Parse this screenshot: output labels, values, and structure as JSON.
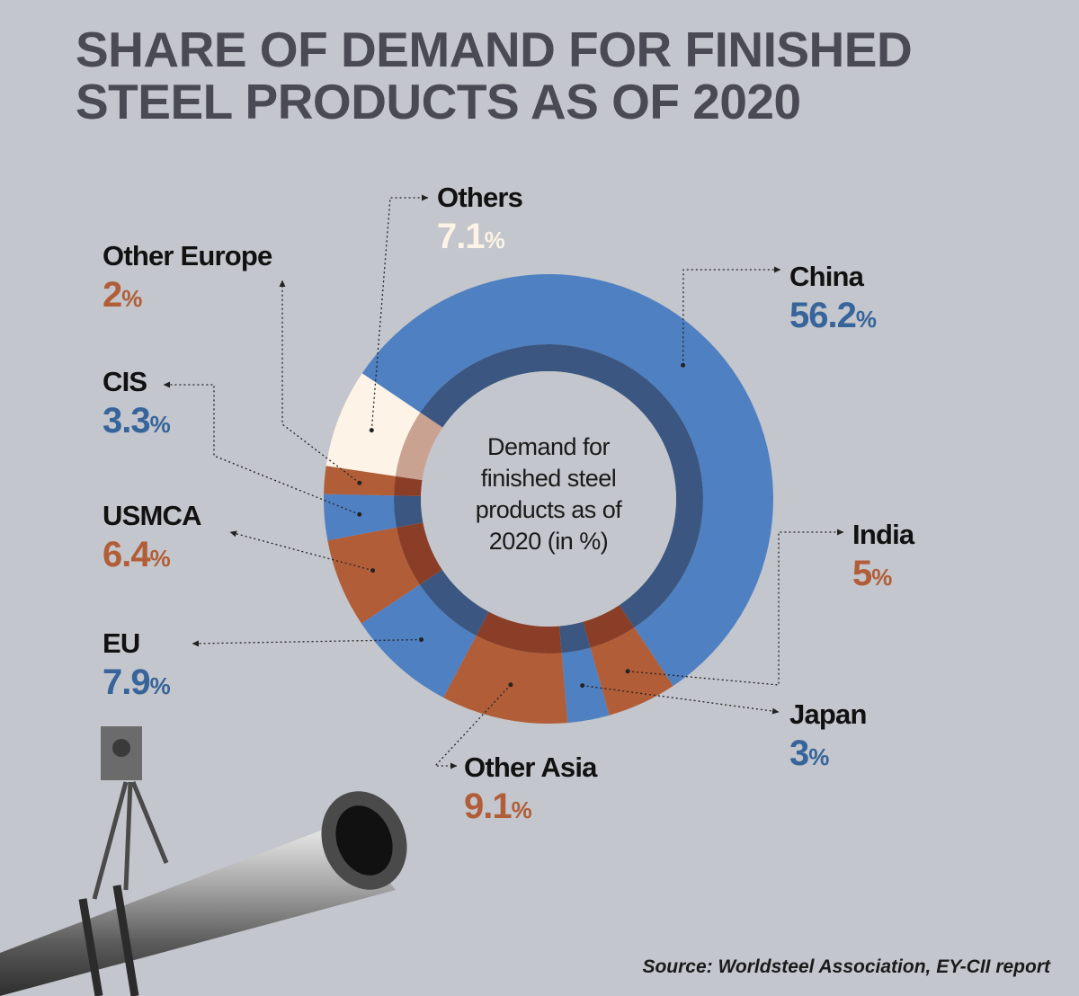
{
  "title": {
    "line1": "SHARE OF DEMAND FOR FINISHED",
    "line2": "STEEL PRODUCTS AS OF 2020"
  },
  "center_text": {
    "line1": "Demand for",
    "line2": "finished steel",
    "line3": "products  as of",
    "line4": "2020 (in %)"
  },
  "source": "Source: Worldsteel Association, EY-CII report",
  "colors": {
    "blue": "#4f80c2",
    "blue_inner": "#3a5681",
    "orange": "#b15e38",
    "orange_inner": "#8a3e27",
    "cream": "#fdf3e6",
    "cream_inner": "#c9a292",
    "blue_text": "#37649a",
    "orange_text": "#b15e38",
    "cream_text": "#fdf3e6",
    "background": "#c3c6cc"
  },
  "chart_data": {
    "type": "pie",
    "variant": "donut",
    "unit": "%",
    "slices": [
      {
        "name": "China",
        "value": 56.2,
        "value_label": "56.2",
        "color": "blue"
      },
      {
        "name": "India",
        "value": 5,
        "value_label": "5",
        "color": "orange"
      },
      {
        "name": "Japan",
        "value": 3,
        "value_label": "3",
        "color": "blue"
      },
      {
        "name": "Other Asia",
        "value": 9.1,
        "value_label": "9.1",
        "color": "orange"
      },
      {
        "name": "EU",
        "value": 7.9,
        "value_label": "7.9",
        "color": "blue"
      },
      {
        "name": "USMCA",
        "value": 6.4,
        "value_label": "6.4",
        "color": "orange"
      },
      {
        "name": "CIS",
        "value": 3.3,
        "value_label": "3.3",
        "color": "blue"
      },
      {
        "name": "Other Europe",
        "value": 2,
        "value_label": "2",
        "color": "orange"
      },
      {
        "name": "Others",
        "value": 7.1,
        "value_label": "7.1",
        "color": "cream"
      }
    ]
  }
}
